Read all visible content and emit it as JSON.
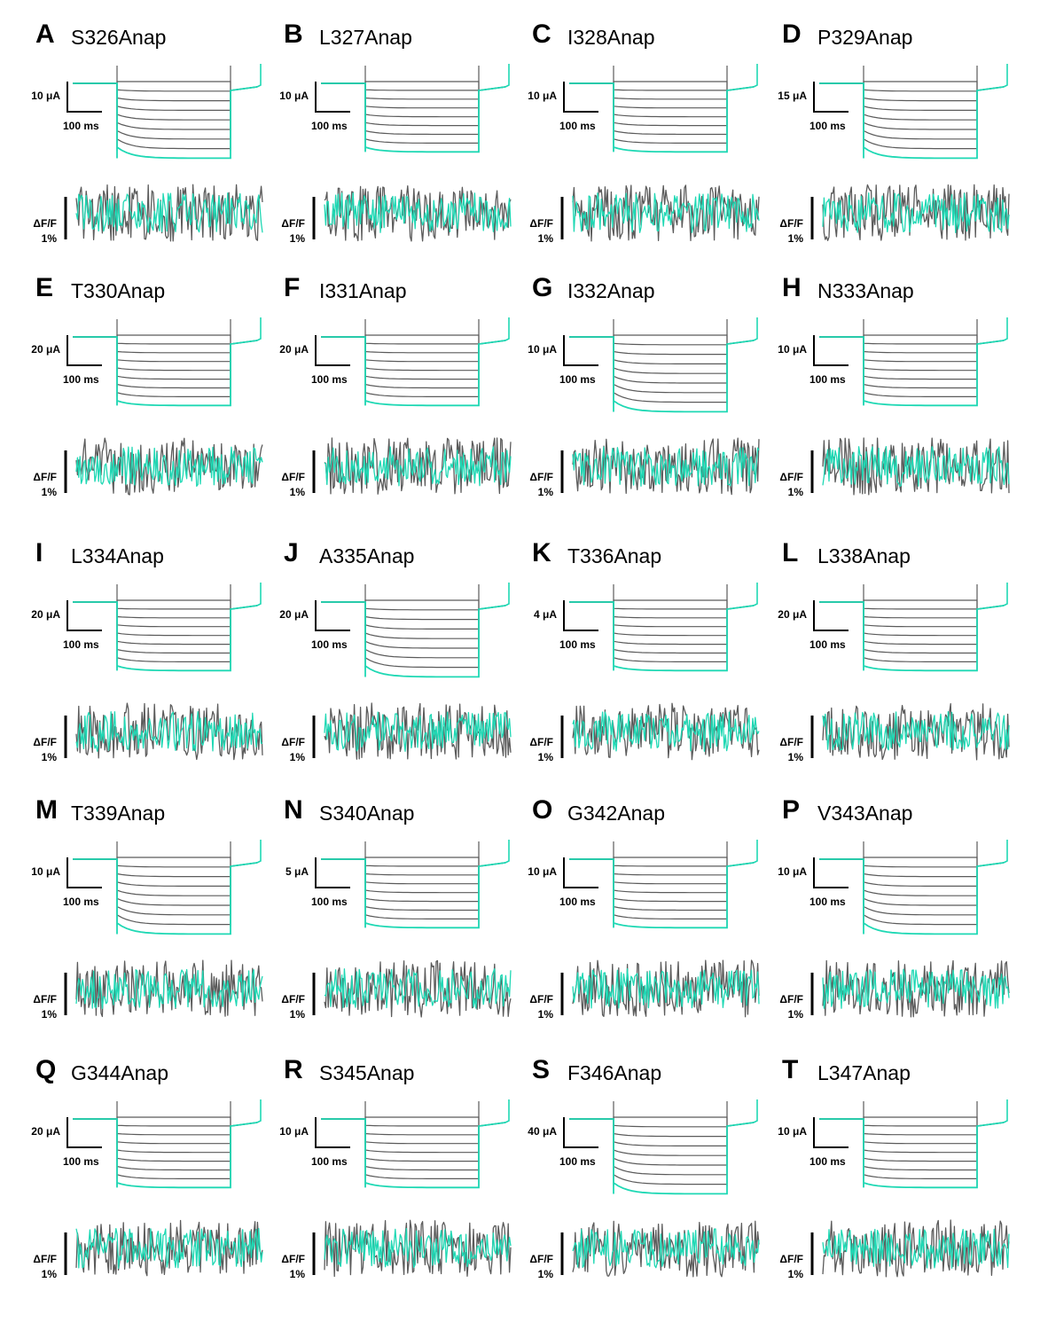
{
  "figure": {
    "colors": {
      "trace": "#5b5b5b",
      "highlight": "#1fd8b4",
      "scalebar": "#000000"
    },
    "fluorescence_label": "ΔF/F",
    "fluorescence_scale": "1%",
    "time_scale": "100 ms"
  },
  "chart_data": [
    {
      "panel": "A",
      "title": "S326Anap",
      "type": "line",
      "current_scale": "10 μA",
      "time_scale": "100 ms",
      "fluor_label": "ΔF/F",
      "fluor_scale": "1%",
      "n_sweeps": 9,
      "highlight_sweep": "most negative"
    },
    {
      "panel": "B",
      "title": "L327Anap",
      "type": "line",
      "current_scale": "10 μA",
      "time_scale": "100 ms",
      "fluor_label": "ΔF/F",
      "fluor_scale": "1%",
      "n_sweeps": 9,
      "highlight_sweep": "most negative"
    },
    {
      "panel": "C",
      "title": "I328Anap",
      "type": "line",
      "current_scale": "10 μA",
      "time_scale": "100 ms",
      "fluor_label": "ΔF/F",
      "fluor_scale": "1%",
      "n_sweeps": 9,
      "highlight_sweep": "most negative"
    },
    {
      "panel": "D",
      "title": "P329Anap",
      "type": "line",
      "current_scale": "15 μA",
      "time_scale": "100 ms",
      "fluor_label": "ΔF/F",
      "fluor_scale": "1%",
      "n_sweeps": 9,
      "highlight_sweep": "most negative"
    },
    {
      "panel": "E",
      "title": "T330Anap",
      "type": "line",
      "current_scale": "20 μA",
      "time_scale": "100 ms",
      "fluor_label": "ΔF/F",
      "fluor_scale": "1%",
      "n_sweeps": 9,
      "highlight_sweep": "most negative"
    },
    {
      "panel": "F",
      "title": "I331Anap",
      "type": "line",
      "current_scale": "20 μA",
      "time_scale": "100 ms",
      "fluor_label": "ΔF/F",
      "fluor_scale": "1%",
      "n_sweeps": 9,
      "highlight_sweep": "most negative"
    },
    {
      "panel": "G",
      "title": "I332Anap",
      "type": "line",
      "current_scale": "10 μA",
      "time_scale": "100 ms",
      "fluor_label": "ΔF/F",
      "fluor_scale": "1%",
      "n_sweeps": 9,
      "highlight_sweep": "most negative"
    },
    {
      "panel": "H",
      "title": "N333Anap",
      "type": "line",
      "current_scale": "10 μA",
      "time_scale": "100 ms",
      "fluor_label": "ΔF/F",
      "fluor_scale": "1%",
      "n_sweeps": 9,
      "highlight_sweep": "most negative"
    },
    {
      "panel": "I",
      "title": "L334Anap",
      "type": "line",
      "current_scale": "20 μA",
      "time_scale": "100 ms",
      "fluor_label": "ΔF/F",
      "fluor_scale": "1%",
      "n_sweeps": 9,
      "highlight_sweep": "most negative"
    },
    {
      "panel": "J",
      "title": "A335Anap",
      "type": "line",
      "current_scale": "20 μA",
      "time_scale": "100 ms",
      "fluor_label": "ΔF/F",
      "fluor_scale": "1%",
      "n_sweeps": 9,
      "highlight_sweep": "most negative"
    },
    {
      "panel": "K",
      "title": "T336Anap",
      "type": "line",
      "current_scale": "4 μA",
      "time_scale": "100 ms",
      "fluor_label": "ΔF/F",
      "fluor_scale": "1%",
      "n_sweeps": 9,
      "highlight_sweep": "most negative"
    },
    {
      "panel": "L",
      "title": "L338Anap",
      "type": "line",
      "current_scale": "20 μA",
      "time_scale": "100 ms",
      "fluor_label": "ΔF/F",
      "fluor_scale": "1%",
      "n_sweeps": 9,
      "highlight_sweep": "most negative"
    },
    {
      "panel": "M",
      "title": "T339Anap",
      "type": "line",
      "current_scale": "10 μA",
      "time_scale": "100 ms",
      "fluor_label": "ΔF/F",
      "fluor_scale": "1%",
      "n_sweeps": 9,
      "highlight_sweep": "most negative"
    },
    {
      "panel": "N",
      "title": "S340Anap",
      "type": "line",
      "current_scale": "5 μA",
      "time_scale": "100 ms",
      "fluor_label": "ΔF/F",
      "fluor_scale": "1%",
      "n_sweeps": 9,
      "highlight_sweep": "most negative"
    },
    {
      "panel": "O",
      "title": "G342Anap",
      "type": "line",
      "current_scale": "10 μA",
      "time_scale": "100 ms",
      "fluor_label": "ΔF/F",
      "fluor_scale": "1%",
      "n_sweeps": 9,
      "highlight_sweep": "most negative"
    },
    {
      "panel": "P",
      "title": "V343Anap",
      "type": "line",
      "current_scale": "10 μA",
      "time_scale": "100 ms",
      "fluor_label": "ΔF/F",
      "fluor_scale": "1%",
      "n_sweeps": 9,
      "highlight_sweep": "most negative"
    },
    {
      "panel": "Q",
      "title": "G344Anap",
      "type": "line",
      "current_scale": "20 μA",
      "time_scale": "100 ms",
      "fluor_label": "ΔF/F",
      "fluor_scale": "1%",
      "n_sweeps": 9,
      "highlight_sweep": "most negative"
    },
    {
      "panel": "R",
      "title": "S345Anap",
      "type": "line",
      "current_scale": "10 μA",
      "time_scale": "100 ms",
      "fluor_label": "ΔF/F",
      "fluor_scale": "1%",
      "n_sweeps": 9,
      "highlight_sweep": "most negative"
    },
    {
      "panel": "S",
      "title": "F346Anap",
      "type": "line",
      "current_scale": "40 μA",
      "time_scale": "100 ms",
      "fluor_label": "ΔF/F",
      "fluor_scale": "1%",
      "n_sweeps": 9,
      "highlight_sweep": "most negative"
    },
    {
      "panel": "T",
      "title": "L347Anap",
      "type": "line",
      "current_scale": "10 μA",
      "time_scale": "100 ms",
      "fluor_label": "ΔF/F",
      "fluor_scale": "1%",
      "n_sweeps": 9,
      "highlight_sweep": "most negative"
    }
  ]
}
